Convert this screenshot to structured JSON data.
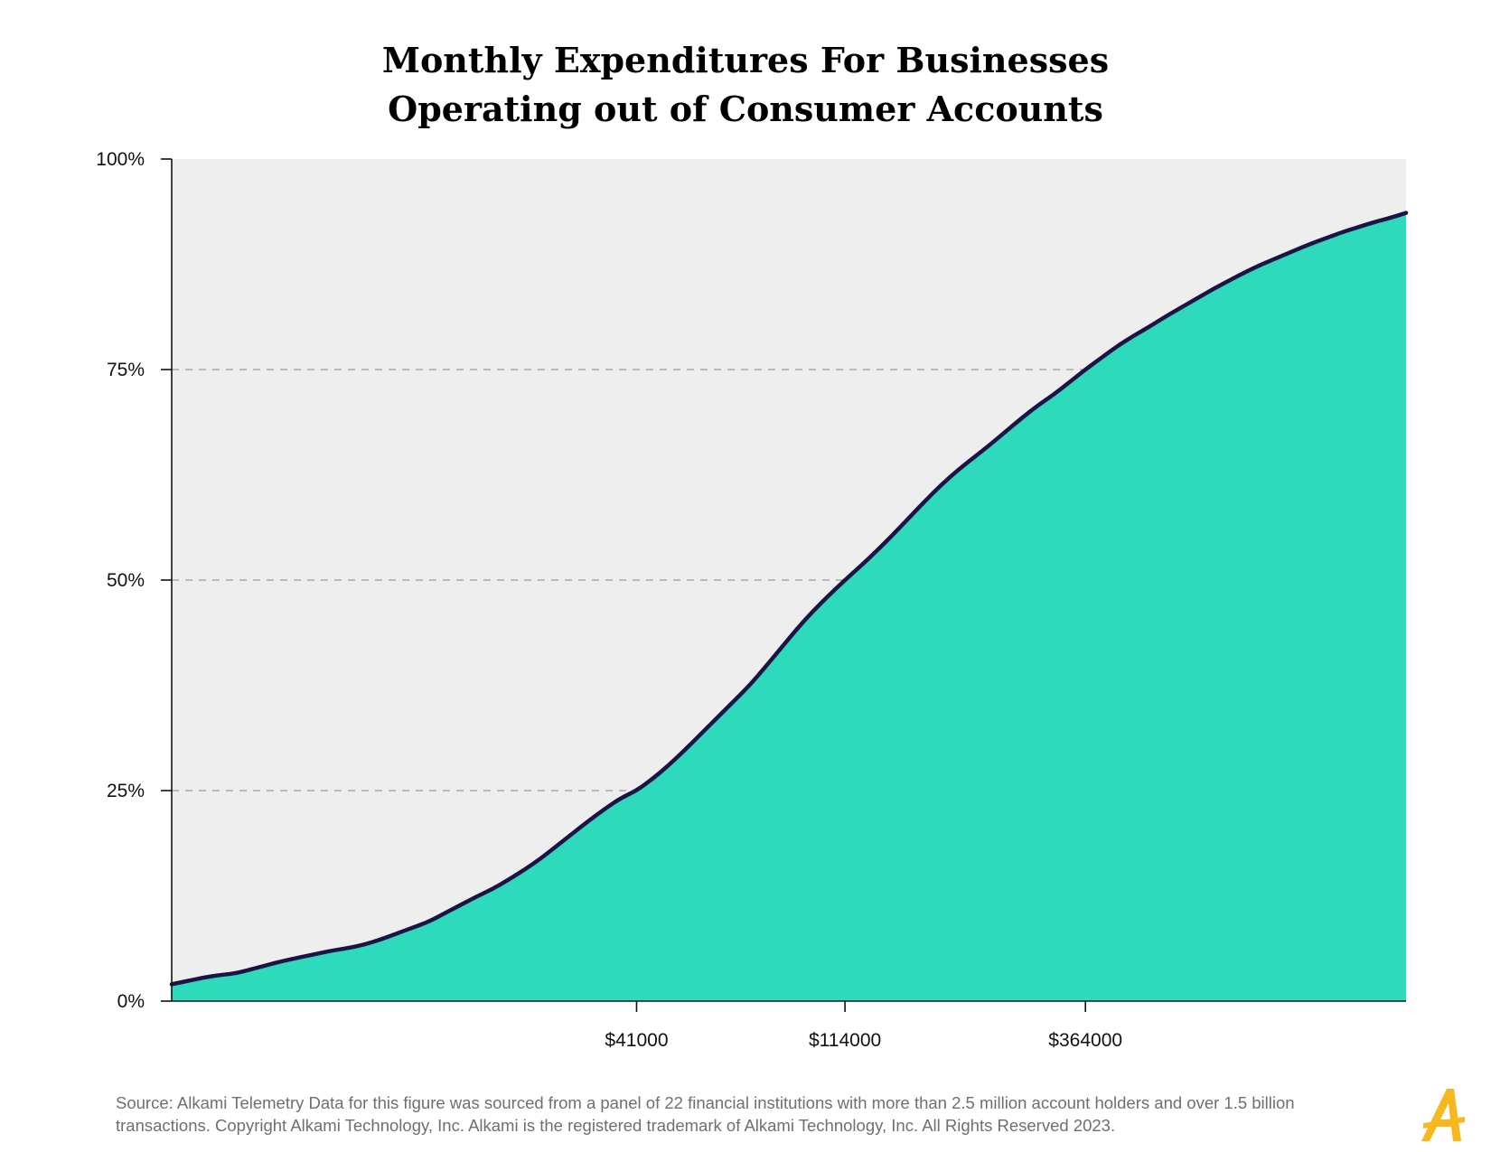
{
  "chart_data": {
    "type": "area",
    "title": [
      "Monthly Expenditures For Businesses",
      "Operating out of Consumer Accounts"
    ],
    "ylim": [
      0,
      100
    ],
    "y_ticks": [
      {
        "value": 0,
        "label": "0%"
      },
      {
        "value": 25,
        "label": "25%"
      },
      {
        "value": 50,
        "label": "50%"
      },
      {
        "value": 75,
        "label": "75%"
      },
      {
        "value": 100,
        "label": "100%"
      }
    ],
    "x_ticks": [
      "$41000",
      "$114000",
      "$364000"
    ],
    "marked_points": [
      {
        "x_label": "$41000",
        "y": 25
      },
      {
        "x_label": "$114000",
        "y": 50
      },
      {
        "x_label": "$364000",
        "y": 75
      }
    ],
    "y_values": [
      2,
      2.4,
      2.8,
      3.1,
      3.3,
      3.8,
      4.3,
      4.8,
      5.2,
      5.6,
      6.0,
      6.3,
      6.7,
      7.3,
      8.0,
      8.7,
      9.4,
      10.4,
      11.4,
      12.4,
      13.3,
      14.4,
      15.6,
      16.9,
      18.4,
      19.9,
      21.4,
      22.8,
      24.1,
      25.0,
      26.4,
      28.0,
      29.8,
      31.7,
      33.6,
      35.5,
      37.4,
      39.6,
      41.9,
      44.2,
      46.3,
      48.2,
      50.0,
      51.7,
      53.5,
      55.4,
      57.4,
      59.4,
      61.3,
      63.0,
      64.5,
      66.0,
      67.6,
      69.2,
      70.7,
      72.0,
      73.5,
      75.0,
      76.4,
      77.8,
      79.0,
      80.1,
      81.3,
      82.4,
      83.5,
      84.6,
      85.6,
      86.6,
      87.5,
      88.3,
      89.1,
      89.9,
      90.6,
      91.3,
      91.9,
      92.5,
      93.0,
      93.6
    ],
    "colors": {
      "plot_background": "#eeeeee",
      "area_fill": "#2ddabc",
      "line": "#1a1446",
      "gridline": "#9a9a9a",
      "axis": "#111111"
    },
    "grid": "dashed guide lines at marked points"
  },
  "source_text": "Source:  Alkami Telemetry Data for this figure was sourced from a panel of 22 financial institutions with more than 2.5 million account holders and over 1.5 billion transactions. Copyright Alkami Technology, Inc. Alkami is the registered trademark of Alkami Technology, Inc. All Rights Reserved 2023.",
  "logo": {
    "icon": "alkami-a-logo-icon",
    "color": "#f5b91f"
  }
}
